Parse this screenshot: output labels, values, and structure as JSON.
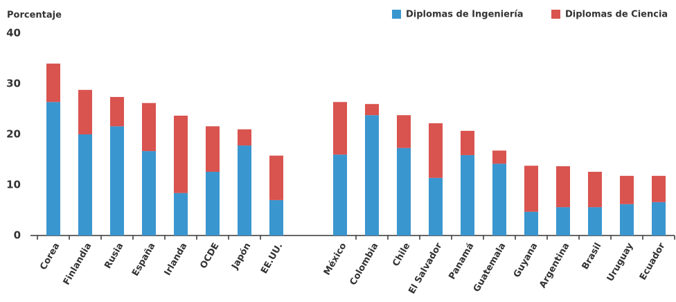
{
  "chart_data": {
    "type": "stacked_bar",
    "y_label": "Porcentaje",
    "categories": [
      "Corea",
      "Finlandia",
      "Rusia",
      "España",
      "Irlanda",
      "OCDE",
      "Japón",
      "EE.UU.",
      null,
      "México",
      "Colombia",
      "Chile",
      "El Salvador",
      "Panamá",
      "Guatemala",
      "Guyana",
      "Argentina",
      "Brasil",
      "Uruguay",
      "Ecuador"
    ],
    "series": [
      {
        "name": "Diplomas de Ingeniería",
        "color": "#3a96cf",
        "values": [
          26.4,
          20.0,
          21.6,
          16.7,
          8.4,
          12.6,
          17.8,
          7.0,
          null,
          16.0,
          23.8,
          17.3,
          11.4,
          15.9,
          14.2,
          4.7,
          5.6,
          5.6,
          6.2,
          6.6
        ]
      },
      {
        "name": "Diplomas de Ciencia",
        "color": "#d9534f",
        "values": [
          7.6,
          8.8,
          5.8,
          9.5,
          15.3,
          9.0,
          3.2,
          8.8,
          null,
          10.4,
          2.2,
          6.5,
          10.8,
          4.8,
          2.6,
          9.1,
          8.1,
          7.0,
          5.6,
          5.2
        ]
      }
    ],
    "ylim": [
      0,
      40
    ],
    "yticks": [
      0,
      10,
      20,
      30,
      40
    ],
    "legend": "top-right"
  }
}
